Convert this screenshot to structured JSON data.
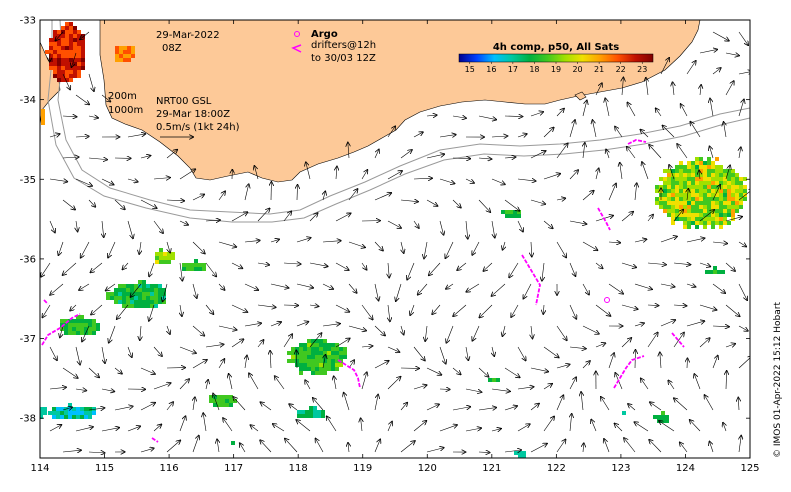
{
  "map": {
    "lon_range": [
      114,
      125
    ],
    "lat_range": [
      -38.5,
      -33
    ],
    "x_ticks": [
      "114",
      "115",
      "116",
      "117",
      "118",
      "119",
      "120",
      "121",
      "122",
      "123",
      "124",
      "125"
    ],
    "y_ticks": [
      "-33",
      "-34",
      "-35",
      "-36",
      "-37",
      "-38"
    ],
    "land_color": "#fdc998",
    "coast_color": "#000000",
    "isobath_color": "#999999",
    "isobath_labels": [
      "200m",
      "1000m"
    ]
  },
  "info": {
    "date": "29-Mar-2022",
    "time": "08Z",
    "current_source": "NRT00 GSL",
    "current_time": "29-Mar 18:00Z",
    "current_scale": "0.5m/s (1kt 24h)"
  },
  "legend": {
    "argo_label": "Argo",
    "argo_color": "#ff00ff",
    "drifter_label_1": "drifters@12h",
    "drifter_label_2": "to 30/03 12Z",
    "drifter_color": "#ff00ff"
  },
  "colorbar": {
    "title": "4h comp, p50, All Sats",
    "ticks": [
      "15",
      "16",
      "17",
      "18",
      "19",
      "20",
      "21",
      "22",
      "23"
    ],
    "range": [
      14.5,
      23.5
    ],
    "colors": [
      "#00008f",
      "#0040ff",
      "#00bfff",
      "#00c8a0",
      "#00b040",
      "#40c820",
      "#a0e000",
      "#f0e000",
      "#ffa000",
      "#ff5000",
      "#c01000",
      "#800000"
    ]
  },
  "credit": "© IMOS 01-Apr-2022 15:12 Hobart"
}
